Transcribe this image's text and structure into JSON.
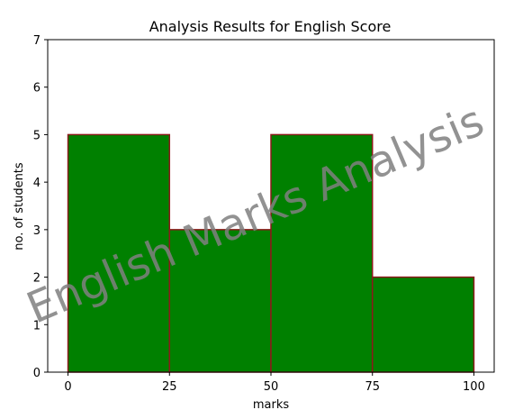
{
  "chart_data": {
    "type": "bar",
    "title": "Analysis Results for English Score",
    "xlabel": "marks",
    "ylabel": "no. of students",
    "bin_edges": [
      0,
      25,
      50,
      75,
      100
    ],
    "values": [
      5,
      3,
      5,
      2
    ],
    "xlim": [
      -5,
      105
    ],
    "ylim": [
      0,
      7
    ],
    "xticks": [
      0,
      25,
      50,
      75,
      100
    ],
    "yticks": [
      0,
      1,
      2,
      3,
      4,
      5,
      6,
      7
    ],
    "bar_color": "#008000",
    "edge_color": "#8b1a1a",
    "grid": false
  },
  "watermark": {
    "text": "English Marks Analysis",
    "color": "#808080"
  }
}
